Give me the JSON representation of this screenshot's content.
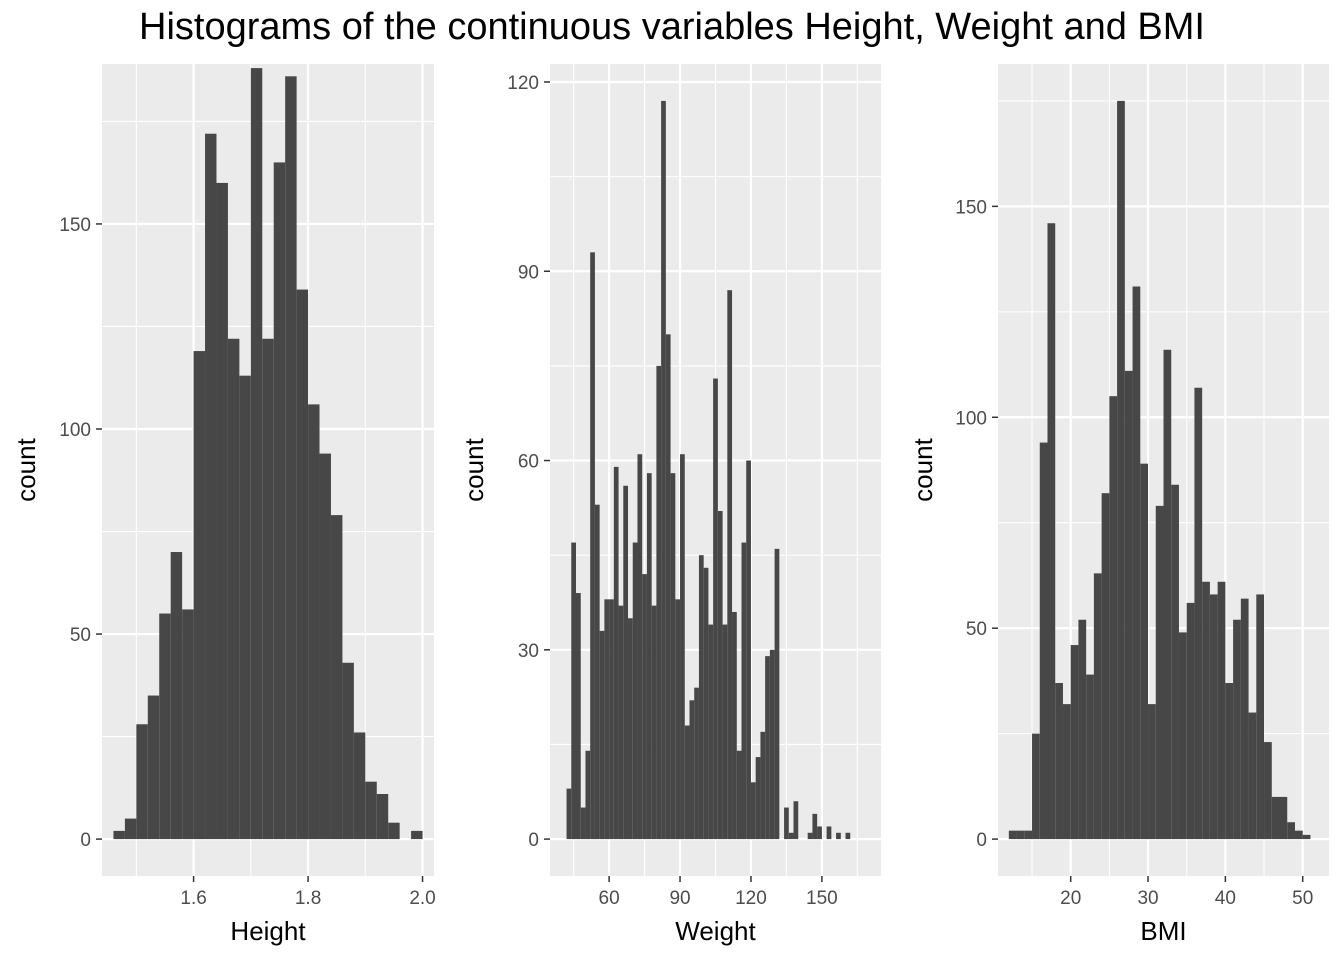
{
  "title": "Histograms of the continuous variables Height, Weight and BMI",
  "colors": {
    "panel_bg": "#EBEBEB",
    "grid": "#FFFFFF",
    "bar": "#474747",
    "tick_text": "#4D4D4D"
  },
  "chart_data": [
    {
      "type": "bar",
      "xlabel": "Height",
      "ylabel": "count",
      "xlim": [
        1.44,
        2.02
      ],
      "ylim": [
        -9,
        189
      ],
      "xticks": [
        1.6,
        1.8,
        2.0
      ],
      "xtick_labels": [
        "1.6",
        "1.8",
        "2.0"
      ],
      "yticks": [
        0,
        50,
        100,
        150
      ],
      "ytick_labels": [
        "0",
        "50",
        "100",
        "150"
      ],
      "grid": true,
      "bin_width": 0.02,
      "bins_start": [
        1.46,
        1.48,
        1.5,
        1.52,
        1.54,
        1.56,
        1.58,
        1.6,
        1.62,
        1.64,
        1.66,
        1.68,
        1.7,
        1.72,
        1.74,
        1.76,
        1.78,
        1.8,
        1.82,
        1.84,
        1.86,
        1.88,
        1.9,
        1.92,
        1.94,
        1.96,
        1.98
      ],
      "values": [
        2,
        5,
        28,
        35,
        55,
        70,
        56,
        119,
        172,
        160,
        122,
        113,
        188,
        122,
        165,
        186,
        134,
        106,
        94,
        79,
        43,
        26,
        14,
        11,
        4,
        0,
        2
      ]
    },
    {
      "type": "bar",
      "xlabel": "Weight",
      "ylabel": "count",
      "xlim": [
        35,
        175
      ],
      "ylim": [
        -5.85,
        122.85
      ],
      "xticks": [
        60,
        90,
        120,
        150
      ],
      "xtick_labels": [
        "60",
        "90",
        "120",
        "150"
      ],
      "yticks": [
        0,
        30,
        60,
        90,
        120
      ],
      "ytick_labels": [
        "0",
        "30",
        "60",
        "90",
        "120"
      ],
      "grid": true,
      "bin_width": 2,
      "bins_start": [
        42,
        44,
        46,
        48,
        50,
        52,
        54,
        56,
        58,
        60,
        62,
        64,
        66,
        68,
        70,
        72,
        74,
        76,
        78,
        80,
        82,
        84,
        86,
        88,
        90,
        92,
        94,
        96,
        98,
        100,
        102,
        104,
        106,
        108,
        110,
        112,
        114,
        116,
        118,
        120,
        122,
        124,
        126,
        128,
        130,
        132,
        134,
        136,
        138,
        140,
        142,
        144,
        146,
        148,
        150,
        152,
        154,
        156,
        158,
        160,
        162,
        164,
        166,
        168,
        170
      ],
      "values": [
        8,
        47,
        39,
        5,
        14,
        93,
        53,
        33,
        38,
        38,
        59,
        37,
        56,
        35,
        47,
        61,
        42,
        58,
        37,
        75,
        117,
        80,
        58,
        38,
        61,
        18,
        22,
        24,
        45,
        43,
        34,
        73,
        52,
        34,
        87,
        36,
        14,
        47,
        60,
        9,
        13,
        17,
        29,
        30,
        46,
        0,
        5,
        1,
        6,
        0,
        0,
        1,
        4,
        2,
        0,
        2,
        0,
        1,
        0,
        1,
        0,
        0,
        0,
        0,
        0
      ]
    },
    {
      "type": "bar",
      "xlabel": "BMI",
      "ylabel": "count",
      "xlim": [
        10.6,
        53.4
      ],
      "ylim": [
        -8.75,
        183.75
      ],
      "xticks": [
        20,
        30,
        40,
        50
      ],
      "xtick_labels": [
        "20",
        "30",
        "40",
        "50"
      ],
      "yticks": [
        0,
        50,
        100,
        150
      ],
      "ytick_labels": [
        "0",
        "50",
        "100",
        "150"
      ],
      "grid": true,
      "bin_width": 1,
      "bins_start": [
        12,
        13,
        14,
        15,
        16,
        17,
        18,
        19,
        20,
        21,
        22,
        23,
        24,
        25,
        26,
        27,
        28,
        29,
        30,
        31,
        32,
        33,
        34,
        35,
        36,
        37,
        38,
        39,
        40,
        41,
        42,
        43,
        44,
        45,
        46,
        47,
        48,
        49,
        50,
        51
      ],
      "values": [
        2,
        2,
        2,
        25,
        94,
        146,
        37,
        32,
        46,
        52,
        39,
        63,
        82,
        105,
        175,
        111,
        131,
        89,
        32,
        79,
        116,
        84,
        49,
        56,
        107,
        61,
        58,
        61,
        37,
        52,
        57,
        30,
        58,
        23,
        10,
        10,
        4,
        2,
        1,
        0
      ]
    }
  ]
}
